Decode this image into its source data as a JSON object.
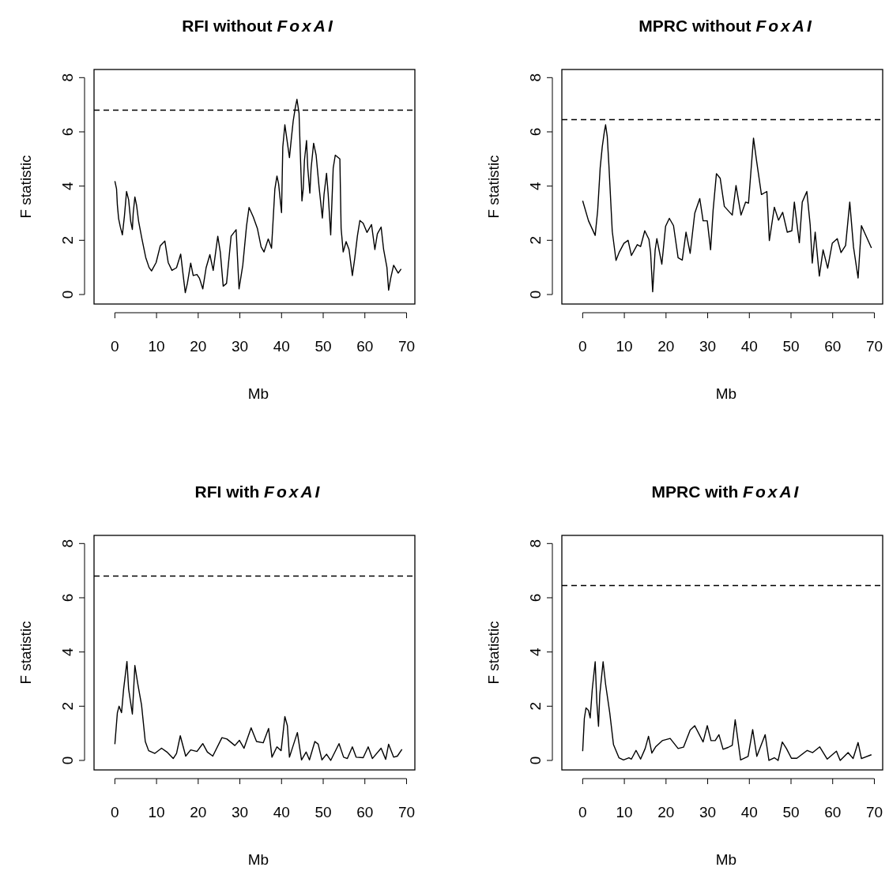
{
  "chart_data": [
    {
      "type": "line",
      "title": "RFI without FoxAI",
      "xlabel": "Mb",
      "ylabel": "F statistic",
      "xlim": [
        -5,
        72
      ],
      "ylim": [
        -0.35,
        8.3
      ],
      "xticks": [
        0,
        10,
        20,
        30,
        40,
        50,
        60,
        70
      ],
      "yticks": [
        0,
        2,
        4,
        6,
        8
      ],
      "grid": false,
      "line_style": "solid",
      "ref_lines": [
        {
          "axis": "y",
          "value": 6.8,
          "line_style": "dashed"
        }
      ],
      "series": [
        {
          "color": "#000000",
          "x": [
            0,
            0.4,
            0.6,
            0.9,
            1.3,
            1.8,
            2.3,
            2.8,
            3.3,
            3.8,
            4.2,
            4.4,
            4.8,
            5.2,
            5.7,
            6.5,
            7.4,
            8.2,
            8.8,
            9.9,
            10.9,
            12,
            12.8,
            13.7,
            14.8,
            15.8,
            16.4,
            16.9,
            17.4,
            18.2,
            18.8,
            19.7,
            20.3,
            21.1,
            21.9,
            22.8,
            23.6,
            24.7,
            25.3,
            26,
            26.8,
            27.9,
            29.1,
            29.8,
            30.7,
            31.6,
            32.2,
            33.2,
            34.2,
            35.1,
            35.8,
            36.8,
            37.6,
            38.4,
            38.9,
            39.3,
            40,
            40.3,
            40.8,
            41.2,
            41.9,
            42.4,
            42.8,
            43.3,
            43.7,
            44.2,
            44.5,
            44.9,
            45.2,
            45.5,
            46,
            46.3,
            46.8,
            47.1,
            47.7,
            48.3,
            49,
            49.8,
            50.2,
            50.8,
            51.2,
            51.8,
            52.4,
            52.9,
            54,
            54.3,
            54.8,
            55.5,
            56.2,
            57,
            57.6,
            58.2,
            58.8,
            59.6,
            60.5,
            61.6,
            62.4,
            63,
            63.9,
            64.5,
            65.3,
            65.7,
            66.2,
            66.9,
            68,
            68.7
          ],
          "values": [
            4.18,
            3.9,
            3.3,
            2.8,
            2.5,
            2.2,
            2.9,
            3.8,
            3.5,
            2.7,
            2.4,
            3.0,
            3.6,
            3.3,
            2.7,
            2.05,
            1.37,
            1.0,
            0.87,
            1.18,
            1.8,
            1.97,
            1.18,
            0.89,
            0.99,
            1.49,
            0.7,
            0.07,
            0.41,
            1.16,
            0.7,
            0.74,
            0.6,
            0.21,
            0.99,
            1.47,
            0.89,
            2.15,
            1.57,
            0.31,
            0.41,
            2.15,
            2.39,
            0.21,
            1.08,
            2.53,
            3.21,
            2.87,
            2.44,
            1.76,
            1.57,
            2.05,
            1.71,
            3.89,
            4.37,
            4.08,
            3.02,
            5.44,
            6.26,
            5.82,
            5.05,
            5.82,
            6.4,
            6.89,
            7.2,
            6.69,
            5.24,
            3.45,
            3.89,
            4.95,
            5.68,
            4.66,
            3.74,
            4.66,
            5.58,
            5.14,
            3.98,
            2.82,
            3.69,
            4.47,
            3.69,
            2.2,
            4.66,
            5.14,
            5.0,
            2.44,
            1.57,
            1.95,
            1.66,
            0.7,
            1.37,
            2.15,
            2.73,
            2.63,
            2.29,
            2.58,
            1.66,
            2.24,
            2.49,
            1.66,
            0.99,
            0.16,
            0.6,
            1.08,
            0.79,
            0.94
          ]
        }
      ]
    },
    {
      "type": "line",
      "title": "MPRC without FoxAI",
      "xlabel": "Mb",
      "ylabel": "F statistic",
      "xlim": [
        -5,
        72
      ],
      "ylim": [
        -0.35,
        8.3
      ],
      "xticks": [
        0,
        10,
        20,
        30,
        40,
        50,
        60,
        70
      ],
      "yticks": [
        0,
        2,
        4,
        6,
        8
      ],
      "grid": false,
      "line_style": "solid",
      "ref_lines": [
        {
          "axis": "y",
          "value": 6.45,
          "line_style": "dashed"
        }
      ],
      "series": [
        {
          "color": "#000000",
          "x": [
            0,
            1.4,
            3,
            3.6,
            4.2,
            4.7,
            5.2,
            5.5,
            5.9,
            6.3,
            7.1,
            8,
            8.8,
            9.9,
            10.9,
            11.7,
            13.1,
            13.9,
            14.9,
            15.9,
            16.3,
            16.8,
            17.4,
            17.8,
            19,
            19.9,
            20.8,
            21.8,
            22.9,
            23.9,
            24.8,
            25.8,
            26.9,
            28.1,
            28.9,
            29.9,
            30.7,
            31.3,
            32.1,
            33,
            34,
            35.9,
            36.8,
            38,
            39.1,
            39.8,
            40.4,
            41,
            41.7,
            42.9,
            44.2,
            44.8,
            46,
            47,
            48,
            49.1,
            50.2,
            50.8,
            51.4,
            52,
            52.7,
            53.8,
            54.6,
            55.1,
            55.8,
            56.8,
            57.7,
            58.8,
            59.9,
            61.1,
            62,
            63.1,
            64.1,
            65,
            66.1,
            66.9,
            69.3
          ],
          "values": [
            3.46,
            2.72,
            2.18,
            3.1,
            4.67,
            5.45,
            6.0,
            6.26,
            5.82,
            4.75,
            2.33,
            1.26,
            1.57,
            1.89,
            2.0,
            1.44,
            1.84,
            1.77,
            2.35,
            2.04,
            1.55,
            0.1,
            1.65,
            2.06,
            1.12,
            2.52,
            2.81,
            2.54,
            1.36,
            1.27,
            2.3,
            1.52,
            3.0,
            3.54,
            2.72,
            2.72,
            1.65,
            3.1,
            4.46,
            4.29,
            3.25,
            2.93,
            4.02,
            2.93,
            3.41,
            3.37,
            4.58,
            5.77,
            4.97,
            3.69,
            3.8,
            1.99,
            3.22,
            2.74,
            3.03,
            2.3,
            2.35,
            3.41,
            2.64,
            1.91,
            3.41,
            3.8,
            2.57,
            1.16,
            2.3,
            0.68,
            1.65,
            0.97,
            1.89,
            2.06,
            1.55,
            1.81,
            3.41,
            1.75,
            0.61,
            2.54,
            1.72
          ]
        }
      ]
    },
    {
      "type": "line",
      "title": "RFI with FoxAI",
      "xlabel": "Mb",
      "ylabel": "F statistic",
      "xlim": [
        -5,
        72
      ],
      "ylim": [
        -0.35,
        8.3
      ],
      "xticks": [
        0,
        10,
        20,
        30,
        40,
        50,
        60,
        70
      ],
      "yticks": [
        0,
        2,
        4,
        6,
        8
      ],
      "grid": false,
      "line_style": "solid",
      "ref_lines": [
        {
          "axis": "y",
          "value": 6.8,
          "line_style": "dashed"
        }
      ],
      "series": [
        {
          "color": "#000000",
          "x": [
            0,
            0.6,
            1,
            1.6,
            2.1,
            2.9,
            3.3,
            4.2,
            4.8,
            5.5,
            6.4,
            7.3,
            8.1,
            9.6,
            11.2,
            12.5,
            14,
            14.8,
            15.7,
            17,
            18.2,
            19.7,
            21.1,
            22.2,
            23.5,
            25.7,
            26.9,
            28.8,
            29.9,
            31,
            32.7,
            34,
            35.6,
            36.9,
            37.7,
            38.9,
            39.9,
            40.8,
            41.4,
            41.9,
            43.8,
            44.8,
            45.9,
            46.7,
            48,
            48.8,
            49.7,
            50.8,
            51.8,
            53.8,
            54.9,
            55.8,
            57,
            57.9,
            59.6,
            60.8,
            61.8,
            63.9,
            65,
            65.7,
            66.9,
            67.8,
            68.9
          ],
          "values": [
            0.6,
            1.76,
            2.0,
            1.76,
            2.63,
            3.65,
            2.63,
            1.71,
            3.5,
            2.82,
            2.05,
            0.7,
            0.36,
            0.26,
            0.45,
            0.31,
            0.07,
            0.26,
            0.91,
            0.16,
            0.39,
            0.33,
            0.62,
            0.31,
            0.16,
            0.84,
            0.79,
            0.55,
            0.74,
            0.45,
            1.2,
            0.7,
            0.65,
            1.18,
            0.12,
            0.5,
            0.36,
            1.62,
            1.28,
            0.12,
            1.03,
            0.02,
            0.31,
            0.02,
            0.7,
            0.6,
            0.02,
            0.23,
            0,
            0.62,
            0.12,
            0.07,
            0.5,
            0.12,
            0.1,
            0.5,
            0.07,
            0.45,
            0.04,
            0.6,
            0.12,
            0.16,
            0.41
          ]
        }
      ]
    },
    {
      "type": "line",
      "title": "MPRC with FoxAI",
      "xlabel": "Mb",
      "ylabel": "F statistic",
      "xlim": [
        -5,
        72
      ],
      "ylim": [
        -0.35,
        8.3
      ],
      "xticks": [
        0,
        10,
        20,
        30,
        40,
        50,
        60,
        70
      ],
      "yticks": [
        0,
        2,
        4,
        6,
        8
      ],
      "grid": false,
      "line_style": "solid",
      "ref_lines": [
        {
          "axis": "y",
          "value": 6.45,
          "line_style": "dashed"
        }
      ],
      "series": [
        {
          "color": "#000000",
          "x": [
            0,
            0.4,
            0.8,
            1.4,
            1.8,
            2.3,
            3,
            3.4,
            3.8,
            4.1,
            4.9,
            5.5,
            6.5,
            7.4,
            8.7,
            9.8,
            11.1,
            11.7,
            12.8,
            13.9,
            15,
            15.8,
            16.6,
            17.5,
            19.1,
            21,
            22.9,
            24.2,
            25.8,
            26.9,
            28.9,
            29.9,
            30.8,
            31.8,
            32.7,
            33.7,
            34.9,
            35.9,
            36.6,
            37.9,
            39.7,
            40.8,
            41.8,
            43.8,
            44.7,
            46,
            46.9,
            47.9,
            48.9,
            50.1,
            51.4,
            53.9,
            55.2,
            56.9,
            58.7,
            60.9,
            61.8,
            63.7,
            64.9,
            66.1,
            66.9,
            69.3
          ],
          "values": [
            0.34,
            1.55,
            1.94,
            1.84,
            1.57,
            2.62,
            3.64,
            2.13,
            1.26,
            2.42,
            3.64,
            2.81,
            1.75,
            0.58,
            0.1,
            0.02,
            0.1,
            0.05,
            0.37,
            0.05,
            0.44,
            0.89,
            0.27,
            0.5,
            0.73,
            0.81,
            0.44,
            0.49,
            1.12,
            1.28,
            0.68,
            1.28,
            0.73,
            0.73,
            0.95,
            0.41,
            0.48,
            0.56,
            1.5,
            0.02,
            0.15,
            1.14,
            0.15,
            0.95,
            0,
            0.1,
            0,
            0.68,
            0.44,
            0.08,
            0.08,
            0.37,
            0.29,
            0.5,
            0.05,
            0.34,
            0,
            0.29,
            0.07,
            0.66,
            0.07,
            0.21
          ]
        }
      ]
    }
  ]
}
